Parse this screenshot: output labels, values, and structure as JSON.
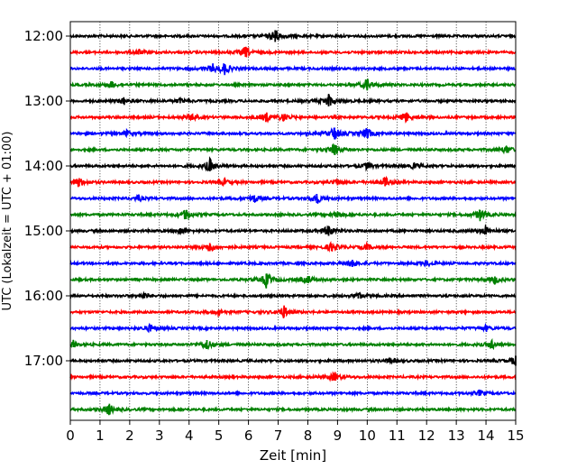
{
  "chart_data": {
    "type": "line",
    "title": "",
    "xlabel": "Zeit  [min]",
    "ylabel": "UTC (Lokalzeit = UTC + 01:00)",
    "xlim": [
      0,
      15
    ],
    "x_ticks": [
      0,
      1,
      2,
      3,
      4,
      5,
      6,
      7,
      8,
      9,
      10,
      11,
      12,
      13,
      14,
      15
    ],
    "x_tick_labels": [
      "0",
      "1",
      "2",
      "3",
      "4",
      "5",
      "6",
      "7",
      "8",
      "9",
      "10",
      "11",
      "12",
      "13",
      "14",
      "15"
    ],
    "y_tick_labels": [
      "12:00",
      "13:00",
      "14:00",
      "15:00",
      "16:00",
      "17:00"
    ],
    "y_tick_rows": [
      0,
      4,
      8,
      12,
      16,
      20
    ],
    "vertical_grid": true,
    "trace_colors": [
      "#000000",
      "#ff0000",
      "#0000ff",
      "#008000"
    ],
    "series": [
      {
        "start": "12:00",
        "events": [
          [
            6.9,
            13
          ]
        ]
      },
      {
        "start": "12:15",
        "events": [
          [
            5.9,
            10
          ],
          [
            2.3,
            5
          ]
        ]
      },
      {
        "start": "12:30",
        "events": [
          [
            5.2,
            10
          ],
          [
            4.8,
            6
          ]
        ]
      },
      {
        "start": "12:45",
        "events": [
          [
            10.0,
            11
          ],
          [
            1.4,
            6
          ]
        ]
      },
      {
        "start": "13:00",
        "events": [
          [
            8.7,
            12
          ],
          [
            1.8,
            6
          ],
          [
            3.7,
            5
          ]
        ]
      },
      {
        "start": "13:15",
        "events": [
          [
            11.3,
            9
          ],
          [
            6.6,
            8
          ],
          [
            7.2,
            7
          ],
          [
            4.1,
            6
          ]
        ]
      },
      {
        "start": "13:30",
        "events": [
          [
            8.9,
            13
          ],
          [
            10.0,
            10
          ],
          [
            1.9,
            5
          ]
        ]
      },
      {
        "start": "13:45",
        "events": [
          [
            8.9,
            11
          ],
          [
            14.7,
            7
          ]
        ]
      },
      {
        "start": "14:00",
        "events": [
          [
            4.7,
            12
          ],
          [
            10.0,
            6
          ],
          [
            11.6,
            5
          ]
        ]
      },
      {
        "start": "14:15",
        "events": [
          [
            0.3,
            9
          ],
          [
            10.6,
            9
          ],
          [
            5.2,
            5
          ],
          [
            9.0,
            5
          ]
        ]
      },
      {
        "start": "14:30",
        "events": [
          [
            8.3,
            10
          ],
          [
            6.2,
            7
          ],
          [
            2.3,
            5
          ]
        ]
      },
      {
        "start": "14:45",
        "events": [
          [
            3.9,
            10
          ],
          [
            13.8,
            10
          ],
          [
            9.0,
            6
          ]
        ]
      },
      {
        "start": "15:00",
        "events": [
          [
            8.7,
            11
          ],
          [
            14.0,
            8
          ],
          [
            3.7,
            6
          ]
        ]
      },
      {
        "start": "15:15",
        "events": [
          [
            4.7,
            9
          ],
          [
            8.8,
            8
          ],
          [
            10.0,
            5
          ]
        ]
      },
      {
        "start": "15:30",
        "events": [
          [
            9.5,
            8
          ],
          [
            12.0,
            5
          ]
        ]
      },
      {
        "start": "15:45",
        "events": [
          [
            6.6,
            13
          ],
          [
            8.0,
            7
          ],
          [
            14.3,
            7
          ]
        ]
      },
      {
        "start": "16:00",
        "events": [
          [
            9.7,
            6
          ],
          [
            2.5,
            5
          ]
        ]
      },
      {
        "start": "16:15",
        "events": [
          [
            7.2,
            11
          ],
          [
            5.0,
            5
          ]
        ]
      },
      {
        "start": "16:30",
        "events": [
          [
            2.7,
            7
          ],
          [
            14.0,
            5
          ]
        ]
      },
      {
        "start": "16:45",
        "events": [
          [
            4.6,
            10
          ],
          [
            14.2,
            8
          ],
          [
            0.1,
            6
          ]
        ]
      },
      {
        "start": "17:00",
        "events": [
          [
            15.0,
            11
          ],
          [
            10.8,
            5
          ]
        ]
      },
      {
        "start": "17:15",
        "events": [
          [
            8.9,
            8
          ]
        ]
      },
      {
        "start": "17:30",
        "events": [
          [
            13.8,
            5
          ]
        ]
      },
      {
        "start": "17:45",
        "events": [
          [
            1.3,
            10
          ]
        ]
      }
    ]
  }
}
